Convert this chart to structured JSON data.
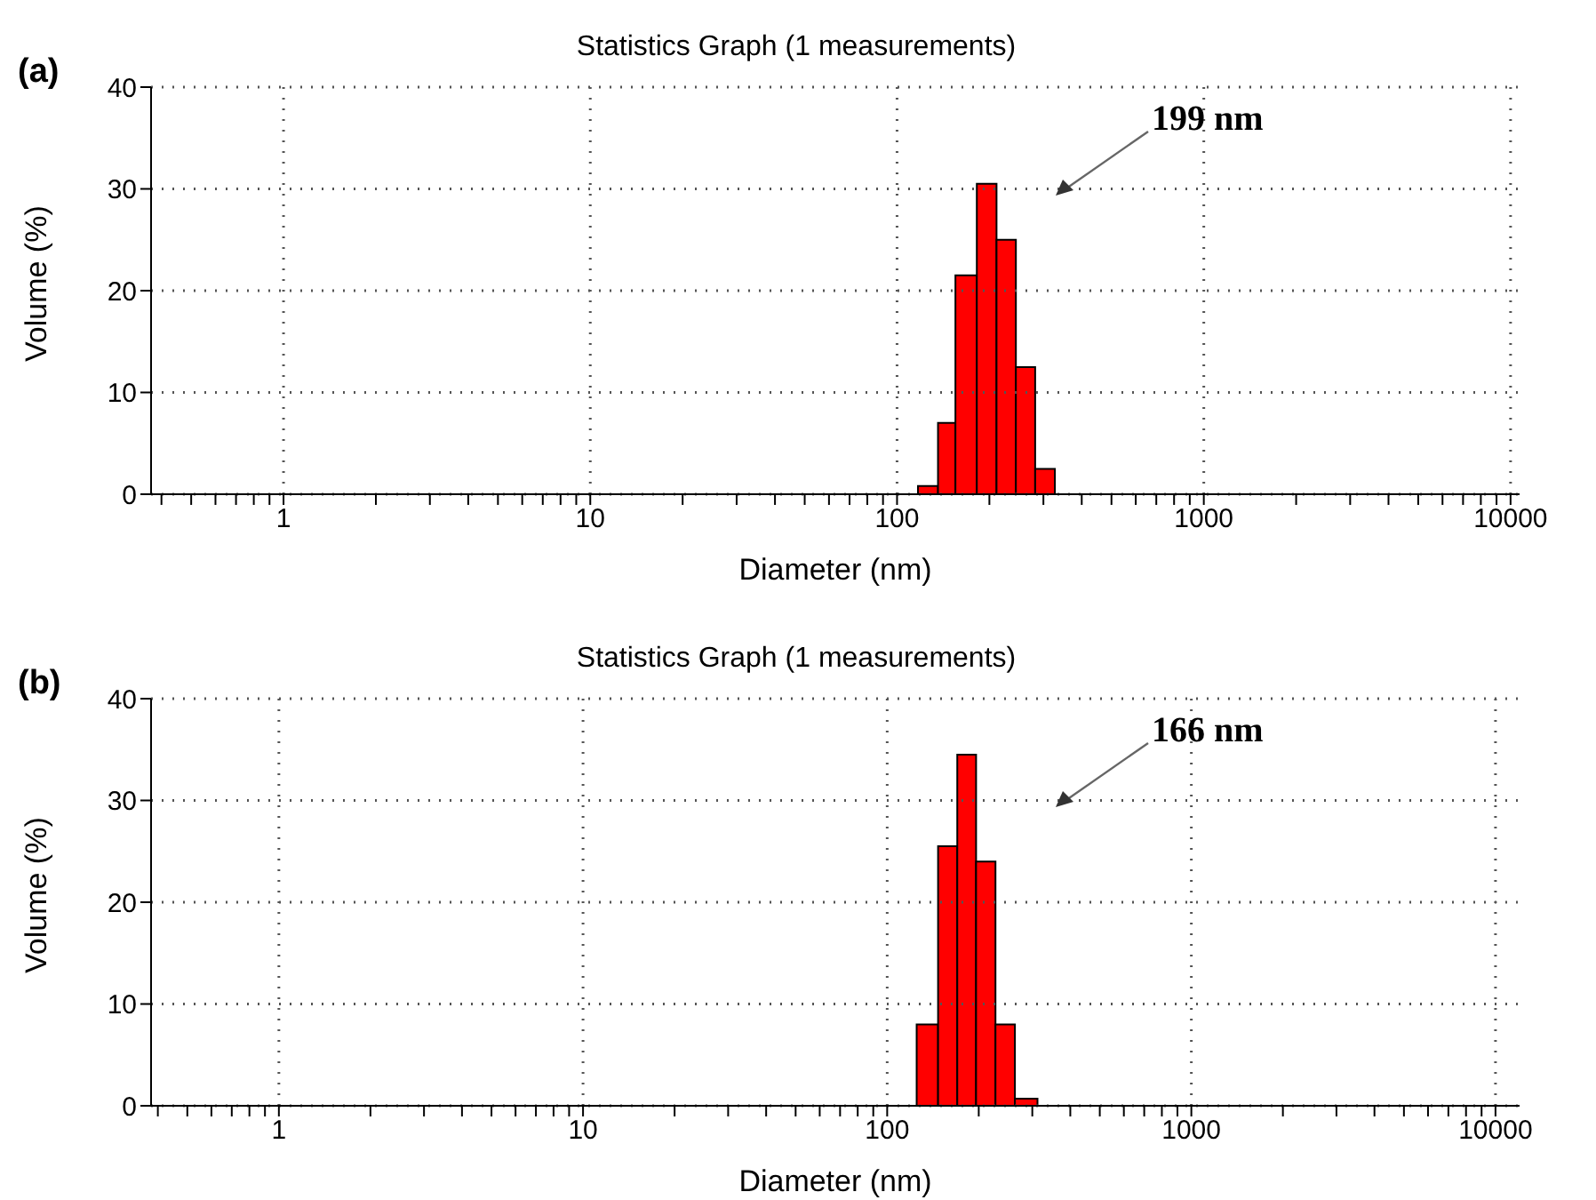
{
  "chart_data": [
    {
      "type": "histogram",
      "title": "Statistics Graph (1 measurements)",
      "xlabel": "Diameter (nm)",
      "ylabel": "Volume (%)",
      "annotations": [
        "(a)",
        "199 nm"
      ],
      "log": "x",
      "grid": true,
      "color": "#ff0000",
      "bins": [
        117,
        136,
        155,
        182,
        211,
        244,
        282,
        327
      ],
      "values": [
        0.8,
        7,
        21.5,
        30.5,
        25,
        12.5,
        2.5
      ],
      "xlim": [
        0.37,
        10700
      ],
      "ylim": [
        0,
        40
      ],
      "yticks": [
        0,
        10,
        20,
        30,
        40
      ],
      "xticks": [
        {
          "value": 0.4,
          "label": null
        },
        {
          "value": 0.5,
          "label": null
        },
        {
          "value": 0.6,
          "label": null
        },
        {
          "value": 0.7,
          "label": null
        },
        {
          "value": 0.8,
          "label": null
        },
        {
          "value": 0.9,
          "label": null
        },
        1,
        {
          "value": 2,
          "label": null
        },
        {
          "value": 3,
          "label": null
        },
        {
          "value": 4,
          "label": null
        },
        {
          "value": 5,
          "label": null
        },
        {
          "value": 6,
          "label": null
        },
        {
          "value": 7,
          "label": null
        },
        {
          "value": 8,
          "label": null
        },
        {
          "value": 9,
          "label": null
        },
        10,
        {
          "value": 20,
          "label": null
        },
        {
          "value": 30,
          "label": null
        },
        {
          "value": 40,
          "label": null
        },
        {
          "value": 50,
          "label": null
        },
        {
          "value": 60,
          "label": null
        },
        {
          "value": 70,
          "label": null
        },
        {
          "value": 80,
          "label": null
        },
        {
          "value": 90,
          "label": null
        },
        100,
        {
          "value": 200,
          "label": null
        },
        {
          "value": 300,
          "label": null
        },
        {
          "value": 400,
          "label": null
        },
        {
          "value": 500,
          "label": null
        },
        {
          "value": 600,
          "label": null
        },
        {
          "value": 700,
          "label": null
        },
        {
          "value": 800,
          "label": null
        },
        {
          "value": 900,
          "label": null
        },
        1000,
        {
          "value": 2000,
          "label": null
        },
        {
          "value": 3000,
          "label": null
        },
        {
          "value": 4000,
          "label": null
        },
        {
          "value": 5000,
          "label": null
        },
        {
          "value": 6000,
          "label": null
        },
        {
          "value": 7000,
          "label": null
        },
        {
          "value": 8000,
          "label": null
        },
        {
          "value": 9000,
          "label": null
        },
        10000
      ]
    },
    {
      "type": "histogram",
      "title": "Statistics Graph (1 measurements)",
      "xlabel": "Diameter (nm)",
      "ylabel": "Volume (%)",
      "annotations": [
        "(b)",
        "166 nm"
      ],
      "log": "x",
      "grid": true,
      "color": "#ff0000",
      "bins": [
        125,
        147,
        170,
        196,
        227,
        263,
        312
      ],
      "values": [
        8,
        25.5,
        34.5,
        24,
        8,
        0.7
      ],
      "xlim": [
        0.38,
        12000
      ],
      "ylim": [
        0,
        40
      ],
      "yticks": [
        0,
        10,
        20,
        30,
        40
      ],
      "xticks": [
        {
          "value": 0.4,
          "label": null
        },
        {
          "value": 0.5,
          "label": null
        },
        {
          "value": 0.6,
          "label": null
        },
        {
          "value": 0.7,
          "label": null
        },
        {
          "value": 0.8,
          "label": null
        },
        {
          "value": 0.9,
          "label": null
        },
        1,
        {
          "value": 2,
          "label": null
        },
        {
          "value": 3,
          "label": null
        },
        {
          "value": 4,
          "label": null
        },
        {
          "value": 5,
          "label": null
        },
        {
          "value": 6,
          "label": null
        },
        {
          "value": 7,
          "label": null
        },
        {
          "value": 8,
          "label": null
        },
        {
          "value": 9,
          "label": null
        },
        10,
        {
          "value": 20,
          "label": null
        },
        {
          "value": 30,
          "label": null
        },
        {
          "value": 40,
          "label": null
        },
        {
          "value": 50,
          "label": null
        },
        {
          "value": 60,
          "label": null
        },
        {
          "value": 70,
          "label": null
        },
        {
          "value": 80,
          "label": null
        },
        {
          "value": 90,
          "label": null
        },
        100,
        {
          "value": 200,
          "label": null
        },
        {
          "value": 300,
          "label": null
        },
        {
          "value": 400,
          "label": null
        },
        {
          "value": 500,
          "label": null
        },
        {
          "value": 600,
          "label": null
        },
        {
          "value": 700,
          "label": null
        },
        {
          "value": 800,
          "label": null
        },
        {
          "value": 900,
          "label": null
        },
        1000,
        {
          "value": 2000,
          "label": null
        },
        {
          "value": 3000,
          "label": null
        },
        {
          "value": 4000,
          "label": null
        },
        {
          "value": 5000,
          "label": null
        },
        {
          "value": 6000,
          "label": null
        },
        {
          "value": 7000,
          "label": null
        },
        {
          "value": 8000,
          "label": null
        },
        {
          "value": 9000,
          "label": null
        },
        10000
      ]
    }
  ]
}
